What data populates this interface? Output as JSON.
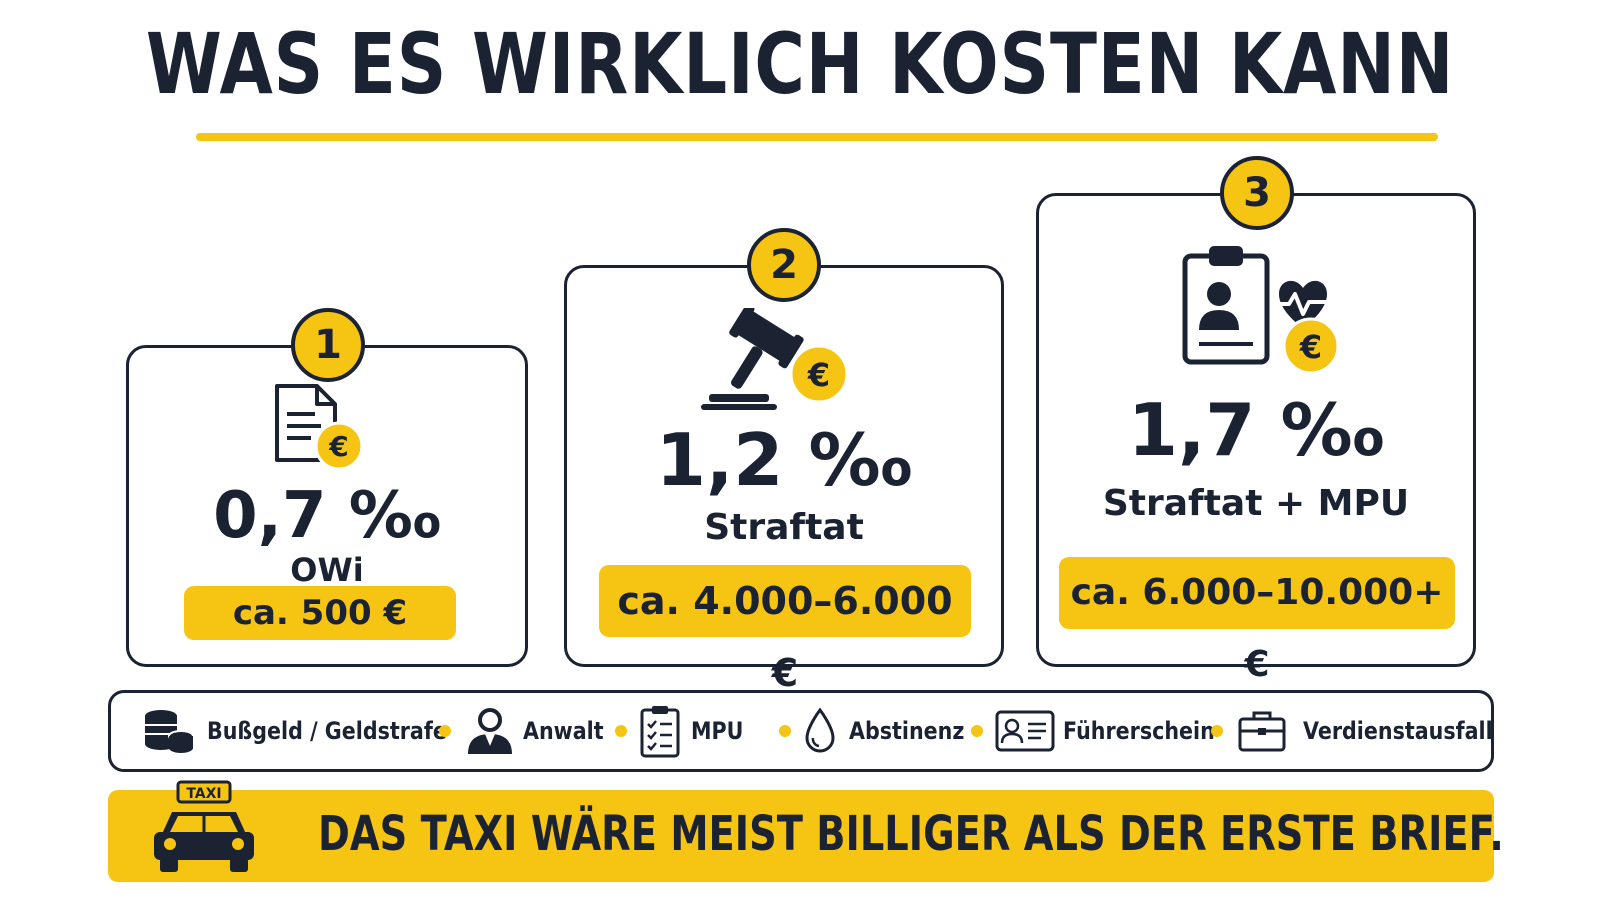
{
  "title": "WAS ES WIRKLICH KOSTEN KANN",
  "colors": {
    "accent": "#f6c413",
    "ink": "#1b2232"
  },
  "cards": [
    {
      "number": "1",
      "icon": "document-euro-icon",
      "promille": "0,7 ‰",
      "label": "OWi",
      "cost": "ca. 500 €"
    },
    {
      "number": "2",
      "icon": "gavel-euro-icon",
      "promille": "1,2 ‰",
      "label": "Straftat",
      "cost": "ca. 4.000–6.000 €"
    },
    {
      "number": "3",
      "icon": "medical-clipboard-euro-icon",
      "promille": "1,7 ‰",
      "label": "Straftat + MPU",
      "cost": "ca. 6.000–10.000+ €"
    }
  ],
  "legend": [
    {
      "icon": "coins-icon",
      "label": "Bußgeld / Geldstrafe"
    },
    {
      "icon": "lawyer-icon",
      "label": "Anwalt"
    },
    {
      "icon": "checklist-icon",
      "label": "MPU"
    },
    {
      "icon": "drop-icon",
      "label": "Abstinenz"
    },
    {
      "icon": "id-card-icon",
      "label": "Führerschein"
    },
    {
      "icon": "briefcase-icon",
      "label": "Verdienstausfall"
    }
  ],
  "banner": {
    "taxi_sign": "TAXI",
    "text": "DAS TAXI WÄRE MEIST BILLIGER ALS DER ERSTE BRIEF."
  }
}
